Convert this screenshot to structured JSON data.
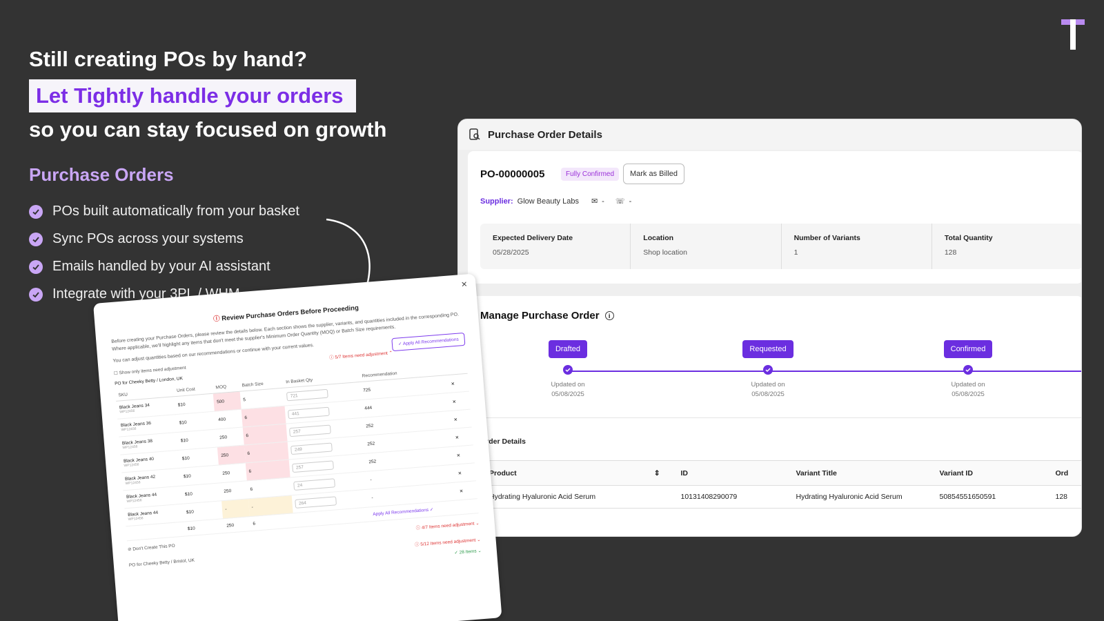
{
  "brand_logo_text": "T",
  "headline": {
    "line1": "Still creating POs by hand?",
    "line2_highlight": "Let Tightly handle your orders",
    "line3": "so you can stay focused on growth"
  },
  "section_title": "Purchase Orders",
  "features": [
    "POs built automatically from your basket",
    "Sync POs across your systems",
    "Emails handled by your AI assistant",
    "Integrate with your 3PL / WHM"
  ],
  "po_card": {
    "title": "Purchase Order Details",
    "po_number": "PO-00000005",
    "status_badge": "Fully Confirmed",
    "mark_billed_label": "Mark as Billed",
    "supplier_label": "Supplier:",
    "supplier_name": "Glow Beauty Labs",
    "email_value": "-",
    "phone_value": "-",
    "stats": [
      {
        "label": "Expected Delivery Date",
        "value": "05/28/2025"
      },
      {
        "label": "Location",
        "value": "Shop location"
      },
      {
        "label": "Number of Variants",
        "value": "1"
      },
      {
        "label": "Total Quantity",
        "value": "128"
      }
    ],
    "manage_title": "Manage Purchase Order",
    "steps": [
      {
        "label": "Drafted",
        "updated": "Updated on",
        "date": "05/08/2025"
      },
      {
        "label": "Requested",
        "updated": "Updated on",
        "date": "05/08/2025"
      },
      {
        "label": "Confirmed",
        "updated": "Updated on",
        "date": "05/08/2025"
      }
    ],
    "order_details_title": "Order Details",
    "table_headers": [
      "Product",
      "ID",
      "Variant Title",
      "Variant ID",
      "Ord"
    ],
    "table_rows": [
      [
        "Hydrating Hyaluronic Acid Serum",
        "10131408290079",
        "Hydrating Hyaluronic Acid Serum",
        "50854551650591",
        "128"
      ]
    ]
  },
  "modal": {
    "title": "Review Purchase Orders Before Proceeding",
    "desc1": "Before creating your Purchase Orders, please review the details below. Each section shows the supplier, variants, and quantities included in the corresponding PO. Where applicable, we'll highlight any items that don't meet the supplier's Minimum Order Quantity (MOQ) or Batch Size requirements.",
    "desc2": "You can adjust quantities based on our recommendations or continue with your current values.",
    "apply_all": "Apply All Recommendations",
    "show_only": "Show only items need adjustment",
    "need_adj_1": "5/7 Items need adjustment",
    "po_for_1": "PO for Cheeky Betty / London, UK",
    "headers": [
      "SKU",
      "Unit Cost",
      "MOQ",
      "Batch Size",
      "In Basket Qty",
      "Recommendation"
    ],
    "rows": [
      {
        "sku": "Black Jeans 34",
        "sub": "WP12456",
        "cost": "$10",
        "moq": "500",
        "batch": "5",
        "qty": "721",
        "rec": "725"
      },
      {
        "sku": "Black Jeans 36",
        "sub": "WP12456",
        "cost": "$10",
        "moq": "400",
        "batch": "6",
        "qty": "441",
        "rec": "444"
      },
      {
        "sku": "Black Jeans 38",
        "sub": "WP12456",
        "cost": "$10",
        "moq": "250",
        "batch": "6",
        "qty": "257",
        "rec": "252"
      },
      {
        "sku": "Black Jeans 40",
        "sub": "WP12456",
        "cost": "$10",
        "moq": "250",
        "batch": "6",
        "qty": "249",
        "rec": "252"
      },
      {
        "sku": "Black Jeans 42",
        "sub": "WP12456",
        "cost": "$10",
        "moq": "250",
        "batch": "6",
        "qty": "257",
        "rec": "252"
      },
      {
        "sku": "Black Jeans 44",
        "sub": "WP12456",
        "cost": "$10",
        "moq": "250",
        "batch": "6",
        "qty": "24",
        "rec": "-"
      },
      {
        "sku": "Black Jeans 44",
        "sub": "WP12456",
        "cost": "$10",
        "moq": "-",
        "batch": "-",
        "qty": "264",
        "rec": "-"
      },
      {
        "sku": "",
        "sub": "",
        "cost": "$10",
        "moq": "250",
        "batch": "6",
        "qty": "",
        "rec": ""
      }
    ],
    "apply_all_small": "Apply All Recommendations",
    "dont_create": "Don't Create This PO",
    "need_adj_2": "4/7 Items need adjustment",
    "po_for_2": "PO for Cheeky Betty / Bristol, UK",
    "need_adj_3": "5/12 Items need adjustment",
    "items_28": "28 Items"
  }
}
